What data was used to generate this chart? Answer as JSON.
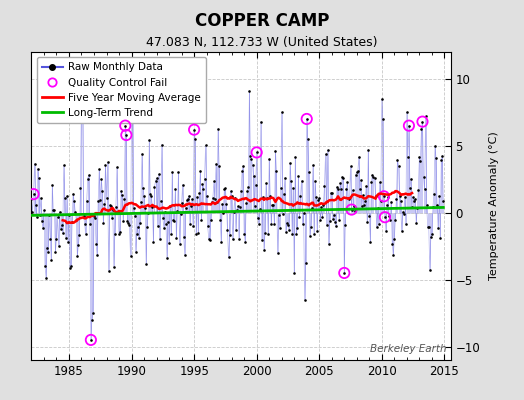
{
  "title": "COPPER CAMP",
  "subtitle": "47.083 N, 112.733 W (United States)",
  "ylabel": "Temperature Anomaly (°C)",
  "watermark": "Berkeley Earth",
  "xlim": [
    1982.0,
    2015.5
  ],
  "ylim": [
    -11,
    12
  ],
  "yticks": [
    -10,
    -5,
    0,
    5,
    10
  ],
  "xticks": [
    1985,
    1990,
    1995,
    2000,
    2005,
    2010,
    2015
  ],
  "bg_color": "#e0e0e0",
  "plot_bg_color": "#ffffff",
  "raw_line_color": "#5555dd",
  "raw_line_alpha": 0.45,
  "raw_dot_color": "#000000",
  "ma_color": "#ff0000",
  "trend_color": "#00bb00",
  "qc_fail_color": "#ff00ff",
  "seed": 42,
  "n_months": 396,
  "start_year": 1982.0,
  "figwidth": 5.24,
  "figheight": 4.0,
  "dpi": 100
}
